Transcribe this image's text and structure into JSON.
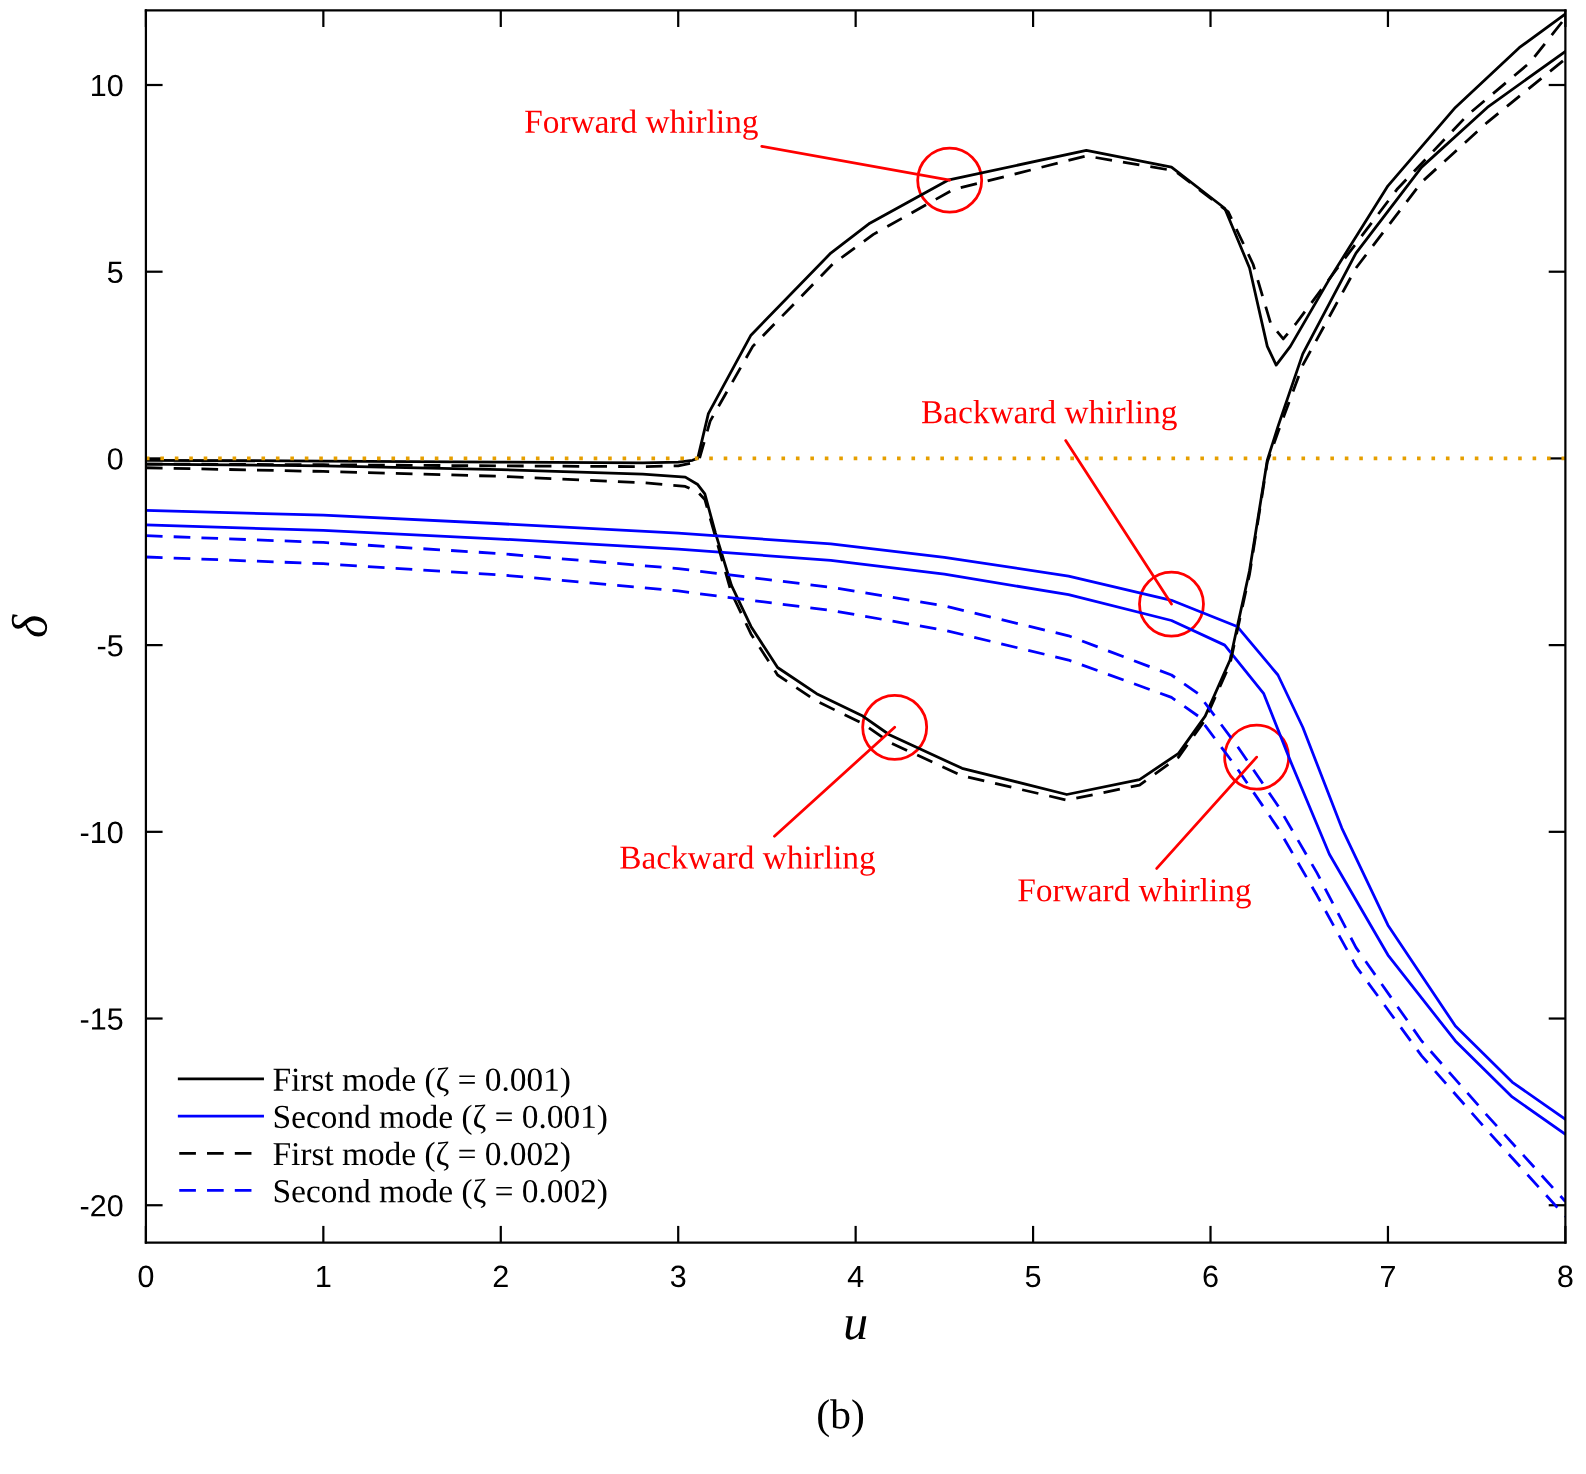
{
  "chart_data": {
    "type": "line",
    "xlabel": "u",
    "ylabel": "δ",
    "xlim": [
      0,
      8
    ],
    "ylim": [
      -21,
      12
    ],
    "xticks": [
      0,
      1,
      2,
      3,
      4,
      5,
      6,
      7,
      8
    ],
    "yticks": [
      -20,
      -15,
      -10,
      -5,
      0,
      5,
      10
    ],
    "legend": "bottom left",
    "series": [
      {
        "name": "First mode (ζ = 0.001)",
        "color": "#000000",
        "line_style": "solid",
        "x": [
          0,
          1,
          2,
          2.8,
          3.0,
          3.08,
          3.11,
          3.17,
          3.41,
          3.86,
          4.08,
          4.52,
          5.3,
          5.78,
          6.08,
          6.22,
          6.32,
          6.37,
          6.45,
          6.67,
          7.0,
          7.38,
          7.74,
          8.0
        ],
        "values": [
          -0.05,
          -0.07,
          -0.1,
          -0.12,
          -0.1,
          -0.05,
          0,
          1.2,
          3.3,
          5.5,
          6.3,
          7.45,
          8.25,
          7.8,
          6.7,
          5.1,
          3.0,
          2.5,
          3.0,
          4.8,
          7.3,
          9.4,
          11.0,
          11.9
        ]
      },
      {
        "color": "#000000",
        "line_style": "solid",
        "x": [
          0,
          1,
          2,
          2.8,
          3.04,
          3.11,
          3.15,
          3.21,
          3.3,
          3.41,
          3.56,
          3.78,
          4.04,
          4.19,
          4.6,
          5.19,
          5.6,
          5.82,
          5.97,
          6.11,
          6.22,
          6.32,
          6.38,
          6.52,
          6.82,
          7.19,
          7.56,
          8.0
        ],
        "values": [
          -0.15,
          -0.2,
          -0.3,
          -0.42,
          -0.5,
          -0.7,
          -0.95,
          -2.0,
          -3.4,
          -4.5,
          -5.6,
          -6.3,
          -6.9,
          -7.4,
          -8.3,
          -9.0,
          -8.6,
          -7.9,
          -6.9,
          -5.4,
          -3.0,
          -0.05,
          0.85,
          2.8,
          5.5,
          7.8,
          9.4,
          10.9
        ]
      },
      {
        "name": "Second mode (ζ = 0.001)",
        "color": "#0000ff",
        "line_style": "solid",
        "x": [
          0,
          1,
          2,
          3,
          3.86,
          4.5,
          5.2,
          5.78,
          6.15,
          6.38,
          6.52,
          6.74,
          7.0,
          7.38,
          7.7,
          8.0
        ],
        "values": [
          -1.39,
          -1.52,
          -1.75,
          -2.0,
          -2.29,
          -2.65,
          -3.15,
          -3.8,
          -4.5,
          -5.8,
          -7.2,
          -9.9,
          -12.5,
          -15.2,
          -16.7,
          -17.7
        ]
      },
      {
        "color": "#0000ff",
        "line_style": "solid",
        "x": [
          0,
          1,
          2,
          3,
          3.86,
          4.5,
          5.2,
          5.78,
          6.08,
          6.3,
          6.45,
          6.67,
          7.0,
          7.38,
          7.7,
          8.0
        ],
        "values": [
          -1.78,
          -1.93,
          -2.16,
          -2.43,
          -2.73,
          -3.1,
          -3.65,
          -4.34,
          -5.0,
          -6.3,
          -8.1,
          -10.6,
          -13.3,
          -15.6,
          -17.1,
          -18.1
        ]
      },
      {
        "name": "First mode (ζ = 0.002)",
        "color": "#000000",
        "line_style": "dashed",
        "x": [
          0,
          1,
          2,
          2.8,
          3.0,
          3.08,
          3.12,
          3.18,
          3.42,
          3.87,
          4.1,
          4.55,
          5.3,
          5.8,
          6.1,
          6.24,
          6.34,
          6.41,
          6.48,
          6.7,
          7.05,
          7.45,
          7.8,
          8.0
        ],
        "values": [
          -0.15,
          -0.17,
          -0.2,
          -0.22,
          -0.2,
          -0.12,
          0,
          1.0,
          3.0,
          5.2,
          6.0,
          7.2,
          8.1,
          7.7,
          6.6,
          5.2,
          3.6,
          3.2,
          3.6,
          5.0,
          7.2,
          9.2,
          10.6,
          11.8
        ]
      },
      {
        "color": "#000000",
        "line_style": "dashed",
        "x": [
          0,
          1,
          2,
          2.8,
          3.04,
          3.11,
          3.15,
          3.21,
          3.3,
          3.41,
          3.56,
          3.78,
          4.04,
          4.19,
          4.6,
          5.19,
          5.6,
          5.82,
          5.97,
          6.11,
          6.22,
          6.32,
          6.38,
          6.52,
          6.82,
          7.19,
          7.56,
          8.0
        ],
        "values": [
          -0.25,
          -0.35,
          -0.48,
          -0.65,
          -0.75,
          -0.9,
          -1.1,
          -2.1,
          -3.6,
          -4.7,
          -5.8,
          -6.5,
          -7.1,
          -7.6,
          -8.5,
          -9.15,
          -8.75,
          -8.0,
          -7.0,
          -5.5,
          -3.1,
          -0.1,
          0.7,
          2.5,
          5.1,
          7.4,
          9.0,
          10.7
        ]
      },
      {
        "name": "Second mode (ζ = 0.002)",
        "color": "#0000ff",
        "line_style": "dashed",
        "x": [
          0,
          1,
          2,
          3,
          3.86,
          4.5,
          5.2,
          5.78,
          5.93,
          6.15,
          6.38,
          6.6,
          6.82,
          7.19,
          7.56,
          8.0
        ],
        "values": [
          -2.07,
          -2.25,
          -2.55,
          -2.95,
          -3.45,
          -3.95,
          -4.75,
          -5.8,
          -6.3,
          -7.7,
          -9.3,
          -11.1,
          -13.1,
          -15.6,
          -17.6,
          -19.9
        ]
      },
      {
        "color": "#0000ff",
        "line_style": "dashed",
        "x": [
          0,
          1,
          2,
          3,
          3.86,
          4.5,
          5.2,
          5.78,
          5.93,
          6.15,
          6.38,
          6.6,
          6.82,
          7.19,
          7.56,
          8.0
        ],
        "values": [
          -2.64,
          -2.82,
          -3.12,
          -3.55,
          -4.07,
          -4.6,
          -5.4,
          -6.4,
          -6.9,
          -8.3,
          -9.9,
          -11.7,
          -13.6,
          -16.0,
          -18.0,
          -20.3
        ]
      }
    ],
    "ref_lines": [
      {
        "axis": "y",
        "value": 0,
        "color": "#e69f00",
        "line_style": "dotted"
      }
    ],
    "annotations": [
      {
        "text": "Forward whirling",
        "x": 4.53,
        "y": 7.45
      },
      {
        "text": "Backward whirling",
        "x": 5.78,
        "y": -3.9
      },
      {
        "text": "Backward whirling",
        "x": 4.22,
        "y": -7.2
      },
      {
        "text": "Forward whirling",
        "x": 6.26,
        "y": -8.0
      },
      "(b)"
    ]
  }
}
